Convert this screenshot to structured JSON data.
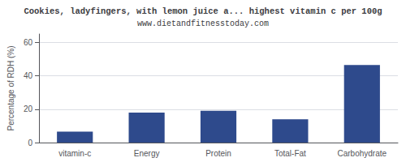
{
  "chart_data": {
    "type": "bar",
    "title": "Cookies, ladyfingers, with lemon juice a... highest vitamin c per 100g",
    "subtitle": "www.dietandfitnesstoday.com",
    "categories": [
      "vitamin-c",
      "Energy",
      "Protein",
      "Total-Fat",
      "Carbohydrate"
    ],
    "values": [
      6.5,
      18.0,
      19.0,
      14.0,
      46.5
    ],
    "color": "#2e4a8c",
    "ylabel": "Percentage of RDH (%)",
    "ylim": [
      0,
      65
    ],
    "yticks": [
      0,
      20,
      40,
      60
    ],
    "grid": true
  }
}
